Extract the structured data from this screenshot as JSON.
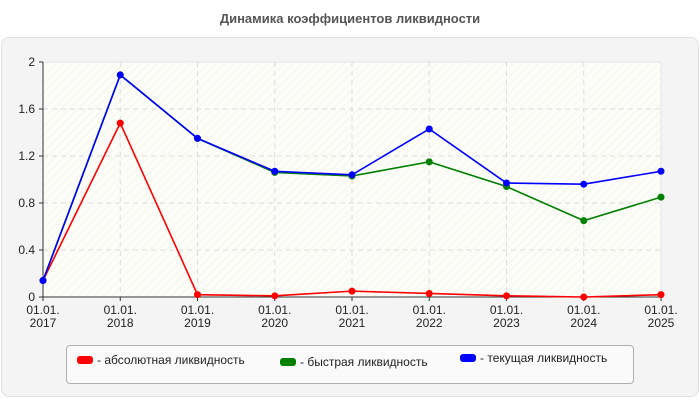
{
  "title": "Динамика коэффициентов ликвидности",
  "chart_data": {
    "type": "line",
    "title": "Динамика коэффициентов ликвидности",
    "xlabel": "",
    "ylabel": "",
    "categories": [
      "01.01.2017",
      "01.01.2018",
      "01.01.2019",
      "01.01.2020",
      "01.01.2021",
      "01.01.2022",
      "01.01.2023",
      "01.01.2024",
      "01.01.2025"
    ],
    "x_tick_lines": [
      [
        "01.01.",
        "2017"
      ],
      [
        "01.01.",
        "2018"
      ],
      [
        "01.01.",
        "2019"
      ],
      [
        "01.01.",
        "2020"
      ],
      [
        "01.01.",
        "2021"
      ],
      [
        "01.01.",
        "2022"
      ],
      [
        "01.01.",
        "2023"
      ],
      [
        "01.01.",
        "2024"
      ],
      [
        "01.01.",
        "2025"
      ]
    ],
    "y_ticks": [
      "0",
      "0.4",
      "0.8",
      "1.2",
      "1.6",
      "2"
    ],
    "ylim": [
      0,
      2
    ],
    "grid": true,
    "legend_position": "bottom",
    "series": [
      {
        "name": "- абсолютная ликвидность",
        "color": "#ff0000",
        "values": [
          0.14,
          1.48,
          0.02,
          0.01,
          0.05,
          0.03,
          0.01,
          0.0,
          0.02
        ]
      },
      {
        "name": "- быстрая ликвидность",
        "color": "#008000",
        "values": [
          0.14,
          1.89,
          1.35,
          1.06,
          1.03,
          1.15,
          0.94,
          0.65,
          0.85
        ]
      },
      {
        "name": "- текущая ликвидность",
        "color": "#0000ff",
        "values": [
          0.14,
          1.89,
          1.35,
          1.07,
          1.04,
          1.43,
          0.97,
          0.96,
          1.07
        ]
      }
    ]
  },
  "legend": {
    "items": [
      {
        "label": "- абсолютная ликвидность",
        "color": "#ff0000"
      },
      {
        "label": "- быстрая ликвидность",
        "color": "#008000"
      },
      {
        "label": "- текущая ликвидность",
        "color": "#0000ff"
      }
    ]
  }
}
